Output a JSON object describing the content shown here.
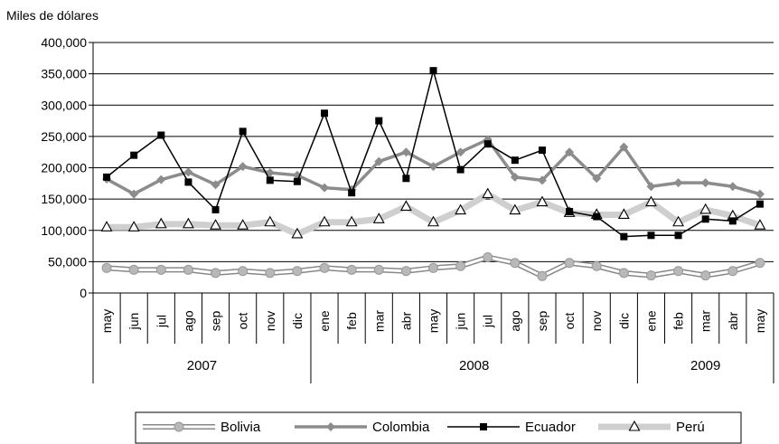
{
  "chart_data": {
    "type": "line",
    "ylabel": "Miles de dólares",
    "ylim": [
      0,
      400000
    ],
    "yticks": [
      "0",
      "50,000",
      "100,000",
      "150,000",
      "200,000",
      "250,000",
      "300,000",
      "350,000",
      "400,000"
    ],
    "grid": true,
    "legend_position": "bottom",
    "categories": [
      "may",
      "jun",
      "jul",
      "ago",
      "sep",
      "oct",
      "nov",
      "dic",
      "ene",
      "feb",
      "mar",
      "abr",
      "may",
      "jun",
      "jul",
      "ago",
      "sep",
      "oct",
      "nov",
      "dic",
      "ene",
      "feb",
      "mar",
      "abr",
      "may"
    ],
    "year_groups": [
      {
        "label": "2007",
        "span": 8
      },
      {
        "label": "2008",
        "span": 12
      },
      {
        "label": "2009",
        "span": 5
      }
    ],
    "series": [
      {
        "name": "Bolivia",
        "color": "#b8b8b8",
        "marker": "circle",
        "values": [
          40000,
          37000,
          37000,
          37000,
          32000,
          35000,
          32000,
          35000,
          40000,
          37000,
          37000,
          35000,
          40000,
          43000,
          57000,
          48000,
          27000,
          48000,
          43000,
          32000,
          28000,
          35000,
          28000,
          35000,
          48000
        ]
      },
      {
        "name": "Colombia",
        "color": "#8c8c8c",
        "marker": "diamond",
        "values": [
          182000,
          158000,
          181000,
          193000,
          173000,
          202000,
          192000,
          188000,
          168000,
          165000,
          210000,
          225000,
          202000,
          225000,
          245000,
          185000,
          180000,
          225000,
          183000,
          233000,
          170000,
          176000,
          176000,
          170000,
          158000
        ]
      },
      {
        "name": "Ecuador",
        "color": "#000000",
        "marker": "square",
        "values": [
          185000,
          220000,
          252000,
          177000,
          133000,
          258000,
          180000,
          178000,
          287000,
          160000,
          275000,
          183000,
          355000,
          197000,
          238000,
          212000,
          228000,
          130000,
          122000,
          90000,
          92000,
          92000,
          118000,
          115000,
          142000
        ]
      },
      {
        "name": "Perú",
        "color": "#cfcfcf",
        "marker": "triangle",
        "values": [
          105000,
          105000,
          110000,
          110000,
          108000,
          108000,
          113000,
          94000,
          113000,
          113000,
          118000,
          138000,
          113000,
          132000,
          158000,
          132000,
          145000,
          128000,
          125000,
          125000,
          145000,
          113000,
          133000,
          123000,
          108000
        ]
      }
    ]
  }
}
